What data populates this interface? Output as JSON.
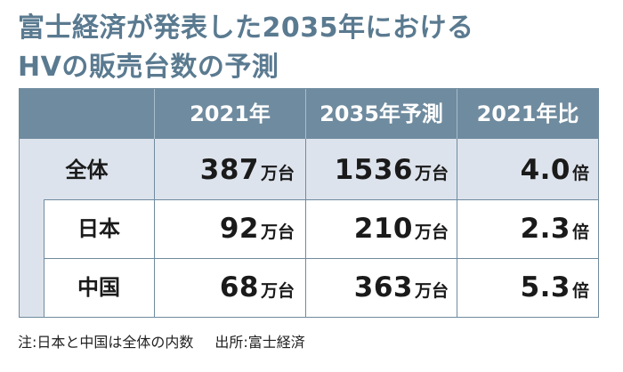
{
  "title": {
    "line1": "富士経済が発表した2035年における",
    "line2": "HVの販売台数の予測"
  },
  "table": {
    "headers": [
      "",
      "2021年",
      "2035年予測",
      "2021年比"
    ],
    "rows": [
      {
        "label": "全体",
        "v2021": "387",
        "u2021": "万台",
        "v2035": "1536",
        "u2035": "万台",
        "ratio": "4.0",
        "uratio": "倍"
      },
      {
        "label": "日本",
        "v2021": "92",
        "u2021": "万台",
        "v2035": "210",
        "u2035": "万台",
        "ratio": "2.3",
        "uratio": "倍"
      },
      {
        "label": "中国",
        "v2021": "68",
        "u2021": "万台",
        "v2035": "363",
        "u2035": "万台",
        "ratio": "5.3",
        "uratio": "倍"
      }
    ]
  },
  "footer": {
    "note": "注:日本と中国は全体の内数",
    "source": "出所:富士経済"
  },
  "colors": {
    "title": "#5a7a90",
    "header_bg": "#6f8b9f",
    "band_bg": "#dde3ec",
    "border": "#6f8b9f"
  }
}
